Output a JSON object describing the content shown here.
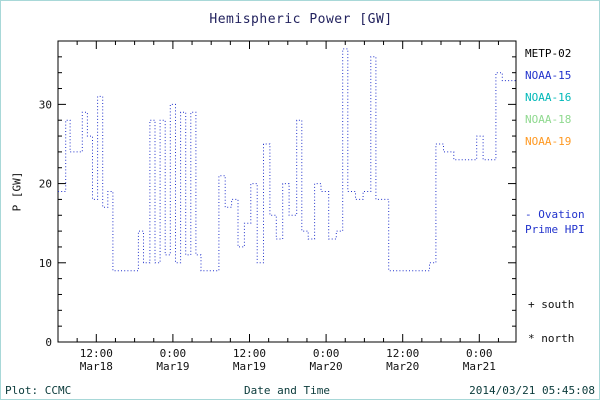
{
  "footer": {
    "plot_credit": "Plot: CCMC",
    "timestamp": "2014/03/21 05:45:08"
  },
  "legend": {
    "satellites": [
      {
        "label": "METP-02",
        "color": "#000000"
      },
      {
        "label": "NOAA-15",
        "color": "#2233cc"
      },
      {
        "label": "NOAA-16",
        "color": "#00b8b8"
      },
      {
        "label": "NOAA-18",
        "color": "#8fd98f"
      },
      {
        "label": "NOAA-19",
        "color": "#ff9922"
      }
    ],
    "model": {
      "line1": "- Ovation",
      "line2": "Prime HPI",
      "color": "#2233cc"
    },
    "markers": [
      {
        "symbol": "+",
        "label": "south"
      },
      {
        "symbol": "*",
        "label": "north"
      }
    ]
  },
  "chart_data": {
    "type": "line",
    "style": "dotted-step",
    "title": "Hemispheric Power [GW]",
    "xlabel": "Date and Time",
    "ylabel": "P [GW]",
    "x_unit": "hours from 2014-03-18 00:00 UT",
    "xlim": [
      6,
      77.75
    ],
    "ylim": [
      0,
      38
    ],
    "yticks": [
      0,
      10,
      20,
      30
    ],
    "xticks": [
      {
        "hours": 12,
        "time": "12:00",
        "date": "Mar18"
      },
      {
        "hours": 24,
        "time": "0:00",
        "date": "Mar19"
      },
      {
        "hours": 36,
        "time": "12:00",
        "date": "Mar19"
      },
      {
        "hours": 48,
        "time": "0:00",
        "date": "Mar20"
      },
      {
        "hours": 60,
        "time": "12:00",
        "date": "Mar20"
      },
      {
        "hours": 72,
        "time": "0:00",
        "date": "Mar21"
      }
    ],
    "series": [
      {
        "name": "Ovation Prime Hemispheric Power Index",
        "color": "#2233cc",
        "points": [
          [
            6.0,
            19
          ],
          [
            7.2,
            28
          ],
          [
            7.9,
            24
          ],
          [
            9.8,
            29
          ],
          [
            10.6,
            26
          ],
          [
            11.4,
            18
          ],
          [
            12.2,
            31
          ],
          [
            13.0,
            17
          ],
          [
            13.8,
            19
          ],
          [
            14.6,
            9
          ],
          [
            18.6,
            14
          ],
          [
            19.4,
            10
          ],
          [
            20.4,
            28
          ],
          [
            21.2,
            10
          ],
          [
            22.0,
            28
          ],
          [
            22.8,
            11
          ],
          [
            23.6,
            30
          ],
          [
            24.4,
            10
          ],
          [
            25.2,
            29
          ],
          [
            26.0,
            11
          ],
          [
            26.8,
            29
          ],
          [
            27.6,
            11
          ],
          [
            28.4,
            9
          ],
          [
            31.2,
            21
          ],
          [
            32.2,
            17
          ],
          [
            33.2,
            18
          ],
          [
            34.2,
            12
          ],
          [
            35.2,
            15
          ],
          [
            36.2,
            20
          ],
          [
            37.2,
            10
          ],
          [
            38.2,
            25
          ],
          [
            39.2,
            16
          ],
          [
            40.2,
            13
          ],
          [
            41.2,
            20
          ],
          [
            42.2,
            16
          ],
          [
            43.4,
            28
          ],
          [
            44.2,
            14
          ],
          [
            45.2,
            13
          ],
          [
            46.2,
            20
          ],
          [
            47.2,
            19
          ],
          [
            48.4,
            13
          ],
          [
            49.6,
            14
          ],
          [
            50.6,
            37
          ],
          [
            51.4,
            19
          ],
          [
            52.6,
            18
          ],
          [
            53.8,
            19
          ],
          [
            55.0,
            36
          ],
          [
            55.8,
            18
          ],
          [
            56.8,
            18
          ],
          [
            57.8,
            9
          ],
          [
            64.2,
            10
          ],
          [
            65.2,
            25
          ],
          [
            66.4,
            24
          ],
          [
            68.0,
            23
          ],
          [
            71.6,
            26
          ],
          [
            72.6,
            23
          ],
          [
            74.6,
            34
          ],
          [
            75.6,
            33
          ]
        ]
      }
    ]
  }
}
